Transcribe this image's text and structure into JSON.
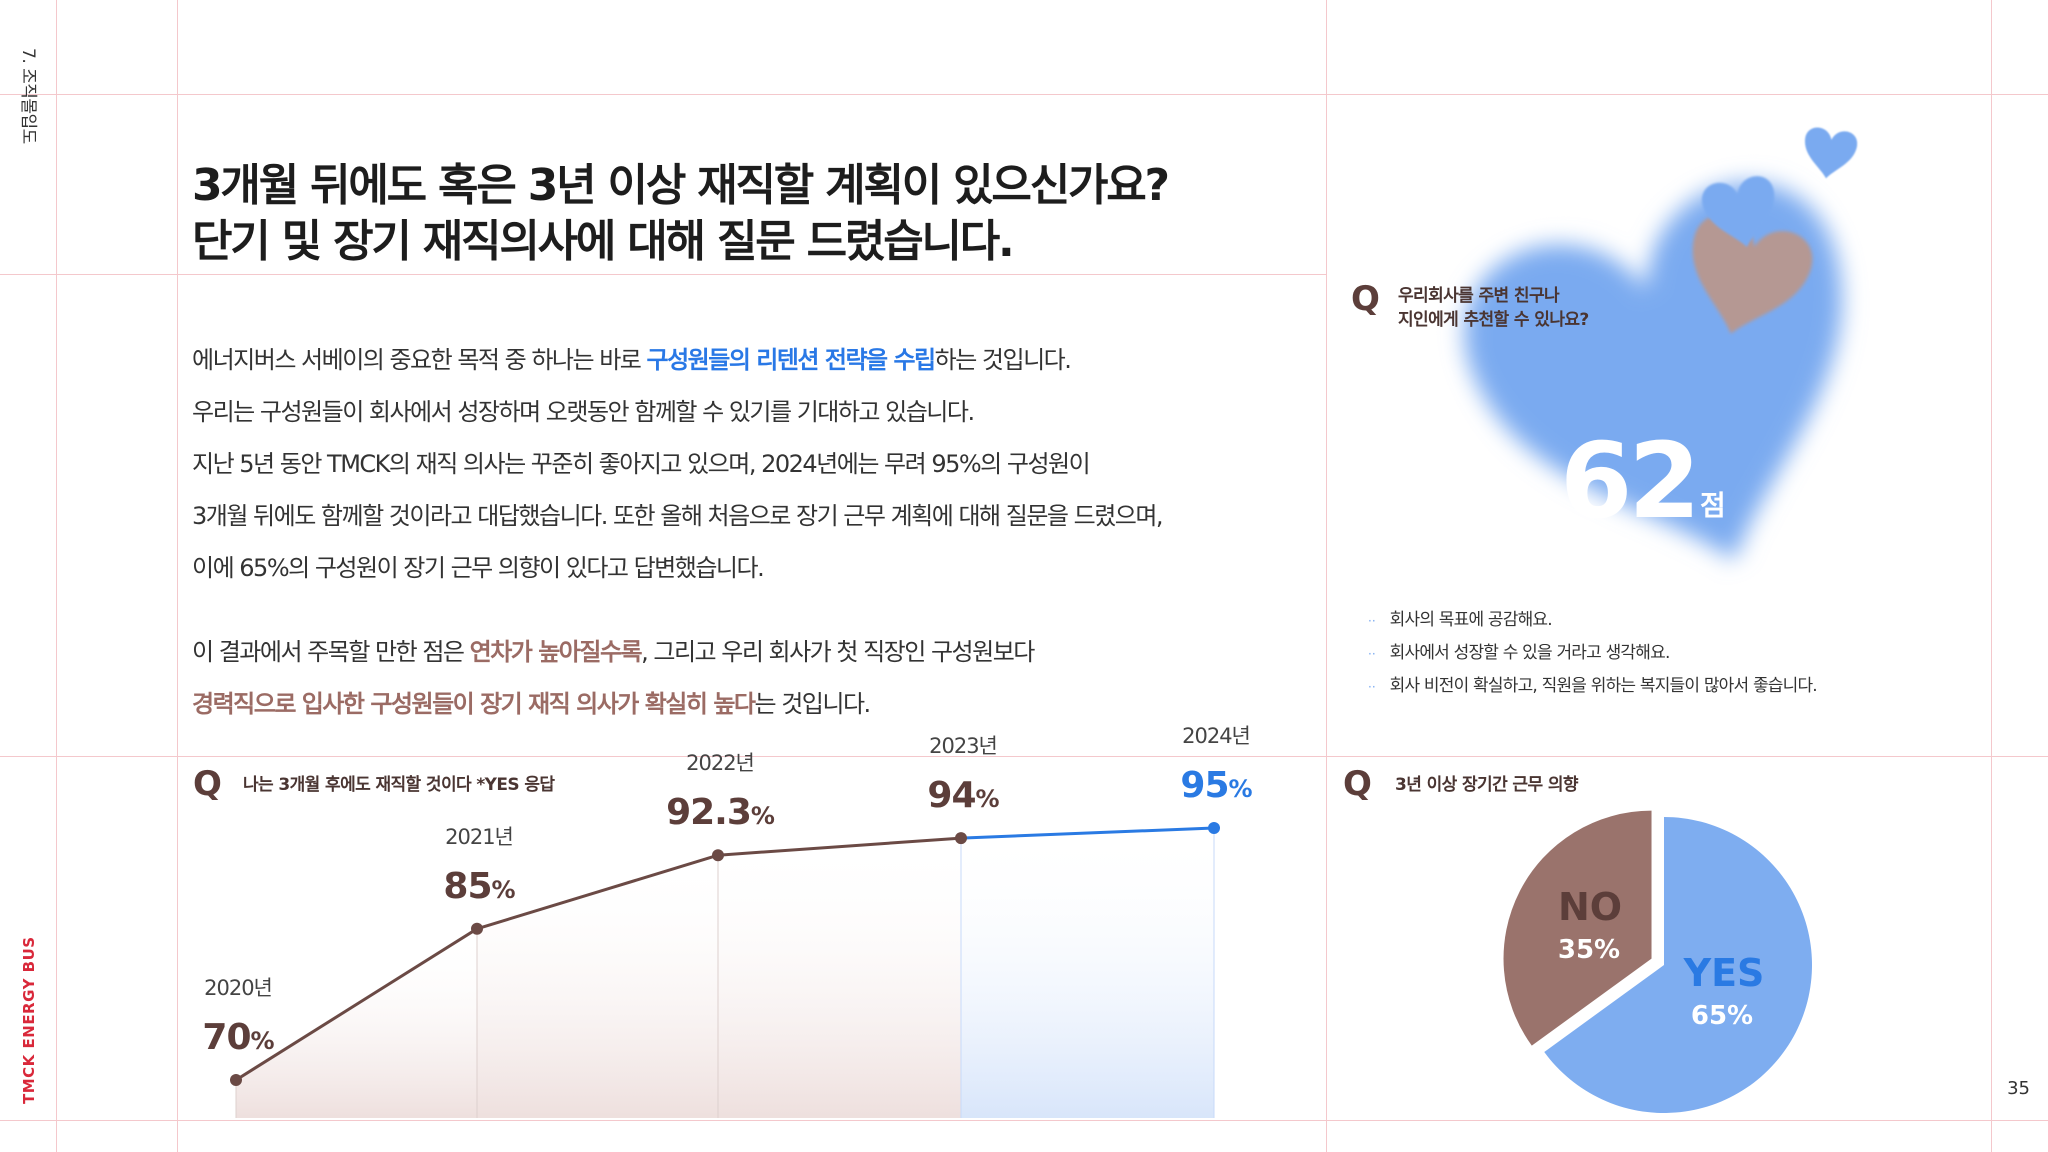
{
  "side": {
    "section": "7. 조직몰입도",
    "brand": "TMCK ENERGY BUS",
    "page": "35"
  },
  "headline": {
    "line1": "3개월 뒤에도 혹은 3년 이상 재직할 계획이 있으신가요?",
    "line2": "단기 및 장기 재직의사에 대해 질문 드렸습니다."
  },
  "body": {
    "p1a": "에너지버스 서베이의 중요한 목적 중 하나는 바로 ",
    "p1b": "구성원들의 리텐션 전략을 수립",
    "p1c": "하는 것입니다.",
    "p2": "우리는 구성원들이 회사에서 성장하며 오랫동안 함께할 수 있기를 기대하고 있습니다.",
    "p3": "지난 5년 동안 TMCK의 재직 의사는 꾸준히 좋아지고 있으며, 2024년에는 무려 95%의 구성원이",
    "p4": "3개월 뒤에도 함께할 것이라고 대답했습니다. 또한 올해 처음으로 장기 근무 계획에 대해 질문을 드렸으며,",
    "p5": "이에 65%의 구성원이 장기 근무 의향이 있다고 답변했습니다.",
    "p6a": "이 결과에서 주목할 만한 점은 ",
    "p6b": "연차가 높아질수록",
    "p6c": ", 그리고 우리 회사가 첫 직장인 구성원보다",
    "p7a": "경력직으로 입사한 구성원들이 장기 재직 의사가 확실히 높다",
    "p7b": "는 것입니다."
  },
  "recommend": {
    "q": "Q",
    "question_line1": "우리회사를 주변 친구나",
    "question_line2": "지인에게 추천할 수 있나요?",
    "score": "62",
    "unit": "점",
    "bullet_mark": "··",
    "reasons": [
      "회사의 목표에 공감해요.",
      "회사에서 성장할 수 있을 거라고 생각해요.",
      "회사 비전이 확실하고, 직원을 위하는 복지들이 많아서 좋습니다."
    ]
  },
  "icons": {
    "q": "q-icon",
    "heart": "heart-icon"
  },
  "colors": {
    "brown": "#6b4a45",
    "blue": "#2a7ae3",
    "heart_blue": "#7aaaf0",
    "heart_brown": "#b59893",
    "pie_no": "#9a736c",
    "pie_yes": "#7eadf0"
  },
  "chart_data": [
    {
      "type": "line",
      "title": "나는 3개월 후에도 재직할 것이다 *YES 응답",
      "q": "Q",
      "categories": [
        "2020년",
        "2021년",
        "2022년",
        "2023년",
        "2024년"
      ],
      "values": [
        70,
        85,
        92.3,
        94,
        95
      ],
      "value_labels": [
        "70",
        "85",
        "92.3",
        "94",
        "95"
      ],
      "unit": "%",
      "ylim": [
        55,
        100
      ],
      "highlight_last": true
    },
    {
      "type": "pie",
      "title": "3년 이상 장기간 근무 의향",
      "q": "Q",
      "slices": [
        {
          "label": "YES",
          "value": 65,
          "display": "65%"
        },
        {
          "label": "NO",
          "value": 35,
          "display": "35%"
        }
      ]
    }
  ]
}
